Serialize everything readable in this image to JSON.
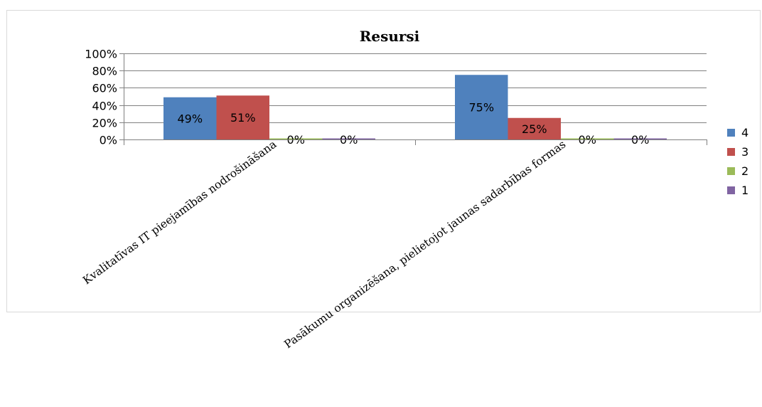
{
  "chart_data": {
    "type": "bar",
    "title": "Resursi",
    "xlabel": "",
    "ylabel": "",
    "ylim": [
      0,
      100
    ],
    "yticks": [
      "0%",
      "20%",
      "40%",
      "60%",
      "80%",
      "100%"
    ],
    "categories": [
      "Kvalitatīvas IT pieejamības nodrošināšana",
      "Pasākumu organizēšana, pielietojot jaunas sadarbības formas"
    ],
    "series": [
      {
        "name": "4",
        "values": [
          49,
          75
        ],
        "labels": [
          "49%",
          "75%"
        ],
        "color": "#4f81bd"
      },
      {
        "name": "3",
        "values": [
          51,
          25
        ],
        "labels": [
          "51%",
          "25%"
        ],
        "color": "#c0504d"
      },
      {
        "name": "2",
        "values": [
          0,
          0
        ],
        "labels": [
          "0%",
          "0%"
        ],
        "color": "#9bbb59"
      },
      {
        "name": "1",
        "values": [
          0,
          0
        ],
        "labels": [
          "0%",
          "0%"
        ],
        "color": "#8064a2"
      }
    ],
    "grid": true,
    "legend_position": "right"
  }
}
